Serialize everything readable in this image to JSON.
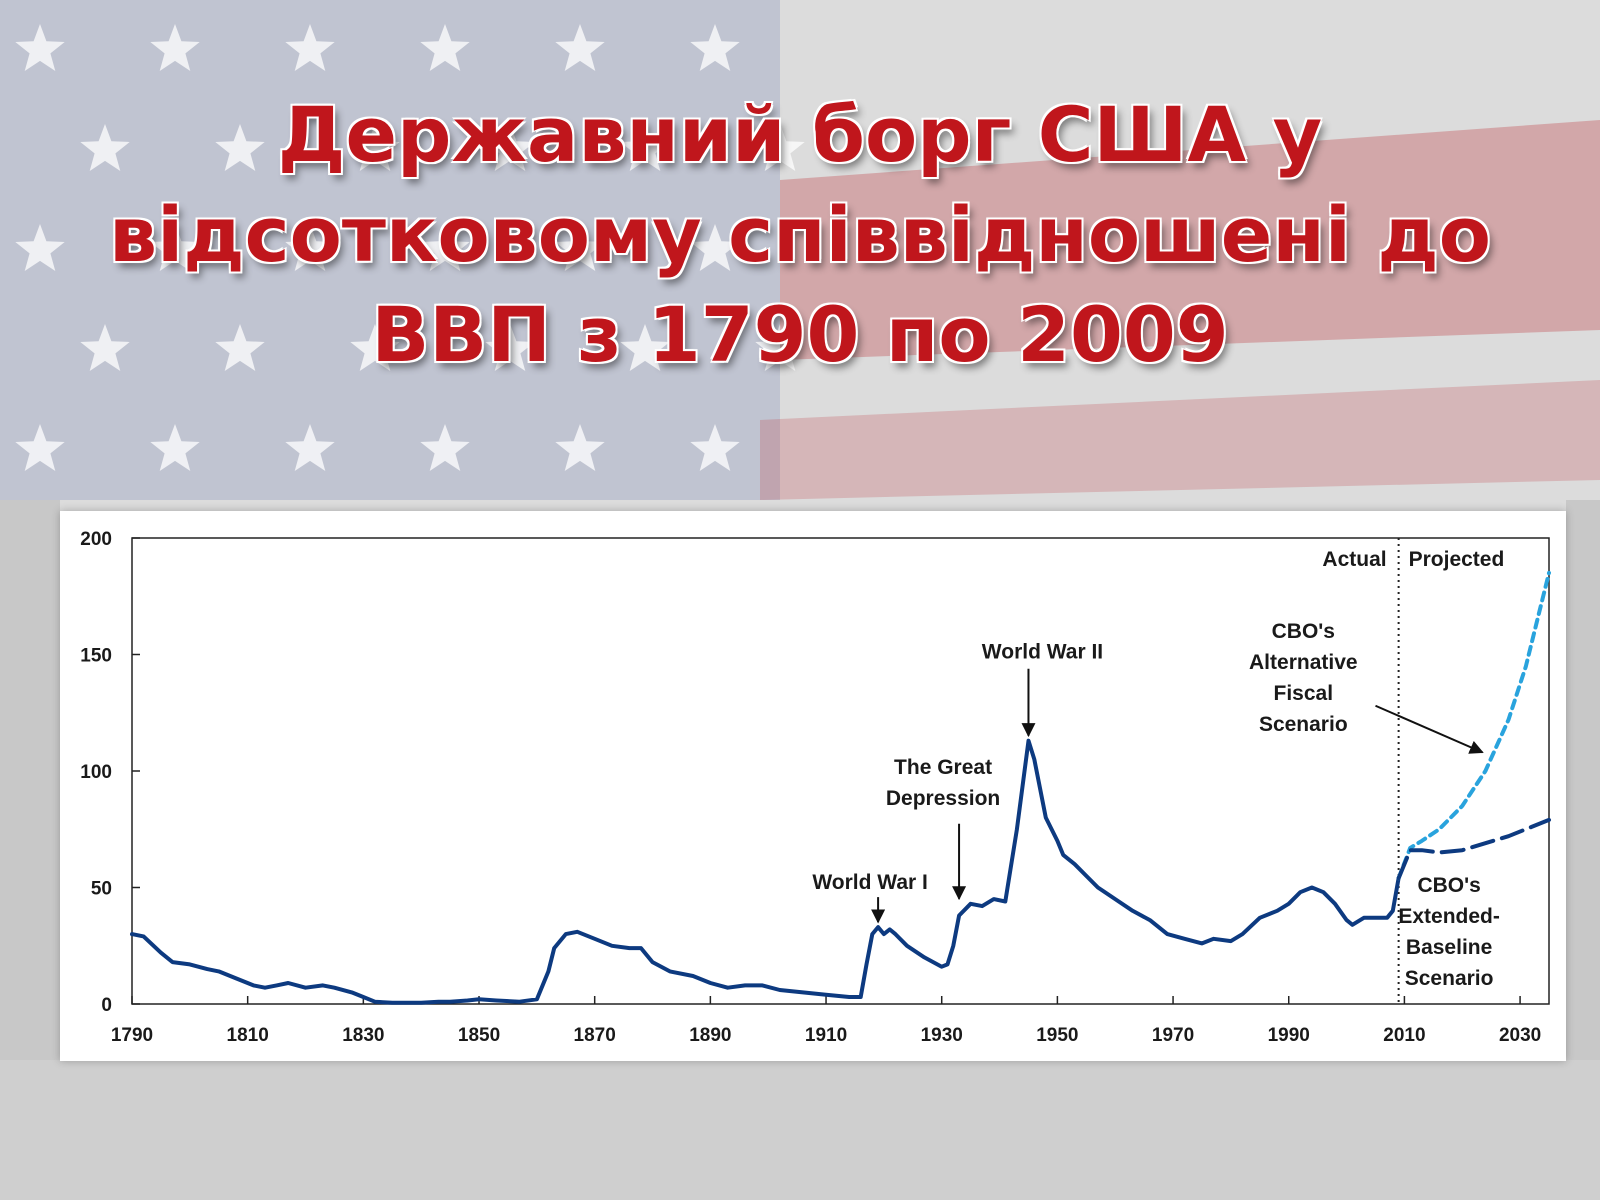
{
  "slide": {
    "title_lines": [
      "Державний борг США у",
      "відсотковому співвідношені до",
      "ВВП з 1790 по 2009"
    ]
  },
  "colors": {
    "title": "#c0161c",
    "actual_line": "#0d3a80",
    "alternative_line": "#29a3dd",
    "extended_line": "#0d3a80"
  },
  "chart_data": {
    "type": "line",
    "xlim": [
      1790,
      2035
    ],
    "ylim": [
      0,
      200
    ],
    "x_ticks": [
      "1790",
      "1810",
      "1830",
      "1850",
      "1870",
      "1890",
      "1910",
      "1930",
      "1950",
      "1970",
      "1990",
      "2010",
      "2030"
    ],
    "y_ticks": [
      "0",
      "50",
      "100",
      "150",
      "200"
    ],
    "grid": false,
    "divider_year": 2009,
    "period_labels": {
      "actual": "Actual",
      "projected": "Projected"
    },
    "series": [
      {
        "style": "solid",
        "points": [
          [
            1790,
            30
          ],
          [
            1792,
            29
          ],
          [
            1795,
            22
          ],
          [
            1797,
            18
          ],
          [
            1800,
            17
          ],
          [
            1803,
            15
          ],
          [
            1805,
            14
          ],
          [
            1808,
            11
          ],
          [
            1811,
            8
          ],
          [
            1813,
            7
          ],
          [
            1815,
            8
          ],
          [
            1817,
            9
          ],
          [
            1820,
            7
          ],
          [
            1823,
            8
          ],
          [
            1825,
            7
          ],
          [
            1828,
            5
          ],
          [
            1830,
            3
          ],
          [
            1832,
            1
          ],
          [
            1835,
            0.5
          ],
          [
            1840,
            0.5
          ],
          [
            1843,
            1
          ],
          [
            1845,
            1
          ],
          [
            1848,
            1.5
          ],
          [
            1850,
            2
          ],
          [
            1853,
            1.5
          ],
          [
            1857,
            1
          ],
          [
            1860,
            2
          ],
          [
            1862,
            14
          ],
          [
            1863,
            24
          ],
          [
            1865,
            30
          ],
          [
            1867,
            31
          ],
          [
            1870,
            28
          ],
          [
            1873,
            25
          ],
          [
            1876,
            24
          ],
          [
            1878,
            24
          ],
          [
            1880,
            18
          ],
          [
            1883,
            14
          ],
          [
            1887,
            12
          ],
          [
            1890,
            9
          ],
          [
            1893,
            7
          ],
          [
            1896,
            8
          ],
          [
            1899,
            8
          ],
          [
            1902,
            6
          ],
          [
            1906,
            5
          ],
          [
            1910,
            4
          ],
          [
            1914,
            3
          ],
          [
            1916,
            3
          ],
          [
            1917,
            17
          ],
          [
            1918,
            30
          ],
          [
            1919,
            33
          ],
          [
            1920,
            30
          ],
          [
            1921,
            32
          ],
          [
            1922,
            30
          ],
          [
            1924,
            25
          ],
          [
            1927,
            20
          ],
          [
            1930,
            16
          ],
          [
            1931,
            17
          ],
          [
            1932,
            25
          ],
          [
            1933,
            38
          ],
          [
            1935,
            43
          ],
          [
            1937,
            42
          ],
          [
            1939,
            45
          ],
          [
            1941,
            44
          ],
          [
            1943,
            75
          ],
          [
            1945,
            113
          ],
          [
            1946,
            105
          ],
          [
            1948,
            80
          ],
          [
            1950,
            70
          ],
          [
            1951,
            64
          ],
          [
            1953,
            60
          ],
          [
            1955,
            55
          ],
          [
            1957,
            50
          ],
          [
            1960,
            45
          ],
          [
            1963,
            40
          ],
          [
            1966,
            36
          ],
          [
            1969,
            30
          ],
          [
            1972,
            28
          ],
          [
            1975,
            26
          ],
          [
            1977,
            28
          ],
          [
            1980,
            27
          ],
          [
            1982,
            30
          ],
          [
            1985,
            37
          ],
          [
            1988,
            40
          ],
          [
            1990,
            43
          ],
          [
            1992,
            48
          ],
          [
            1994,
            50
          ],
          [
            1996,
            48
          ],
          [
            1998,
            43
          ],
          [
            2000,
            36
          ],
          [
            2001,
            34
          ],
          [
            2003,
            37
          ],
          [
            2005,
            37
          ],
          [
            2007,
            37
          ],
          [
            2008,
            40
          ],
          [
            2009,
            54
          ]
        ]
      },
      {
        "name": "CBO's Alternative Fiscal Scenario",
        "style": "dotted",
        "points": [
          [
            2009,
            54
          ],
          [
            2011,
            67
          ],
          [
            2013,
            70
          ],
          [
            2016,
            75
          ],
          [
            2020,
            85
          ],
          [
            2024,
            100
          ],
          [
            2028,
            122
          ],
          [
            2031,
            145
          ],
          [
            2033,
            165
          ],
          [
            2035,
            185
          ]
        ]
      },
      {
        "name": "CBO's Extended-Baseline Scenario",
        "style": "dashed",
        "points": [
          [
            2009,
            54
          ],
          [
            2011,
            66
          ],
          [
            2013,
            66
          ],
          [
            2016,
            65
          ],
          [
            2020,
            66
          ],
          [
            2024,
            69
          ],
          [
            2028,
            72
          ],
          [
            2032,
            76
          ],
          [
            2035,
            79
          ]
        ]
      }
    ],
    "annotations": [
      {
        "text": "World War I",
        "year": 1919,
        "value": 33
      },
      {
        "text": "The Great Depression",
        "year": 1933,
        "value": 43
      },
      {
        "text": "World War II",
        "year": 1945,
        "value": 113
      }
    ],
    "legend_labels": {
      "alternative": [
        "CBO's",
        "Alternative",
        "Fiscal",
        "Scenario"
      ],
      "extended": [
        "CBO's",
        "Extended-",
        "Baseline",
        "Scenario"
      ]
    },
    "depression_label_lines": [
      "The Great",
      "Depression"
    ]
  }
}
